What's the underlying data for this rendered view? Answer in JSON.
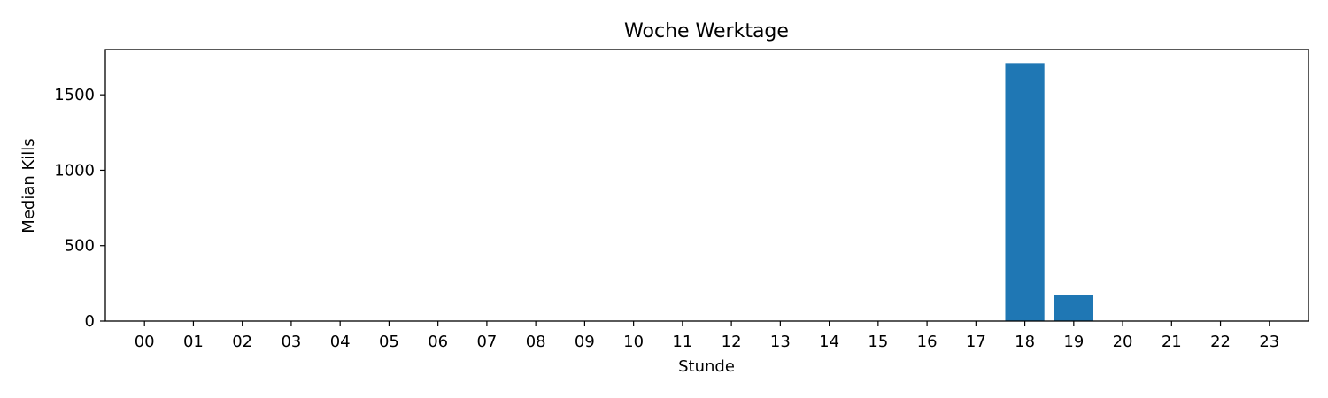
{
  "chart_data": {
    "type": "bar",
    "title": "Woche Werktage",
    "xlabel": "Stunde",
    "ylabel": "Median Kills",
    "categories": [
      "00",
      "01",
      "02",
      "03",
      "04",
      "05",
      "06",
      "07",
      "08",
      "09",
      "10",
      "11",
      "12",
      "13",
      "14",
      "15",
      "16",
      "17",
      "18",
      "19",
      "20",
      "21",
      "22",
      "23"
    ],
    "values": [
      0,
      0,
      0,
      0,
      0,
      0,
      0,
      0,
      0,
      0,
      0,
      0,
      0,
      0,
      0,
      0,
      0,
      0,
      1710,
      175,
      0,
      0,
      0,
      0
    ],
    "ylim": [
      0,
      1800
    ],
    "yticks": [
      0,
      500,
      1000,
      1500
    ],
    "bar_color": "#1f77b4",
    "grid": false,
    "legend": "none"
  }
}
